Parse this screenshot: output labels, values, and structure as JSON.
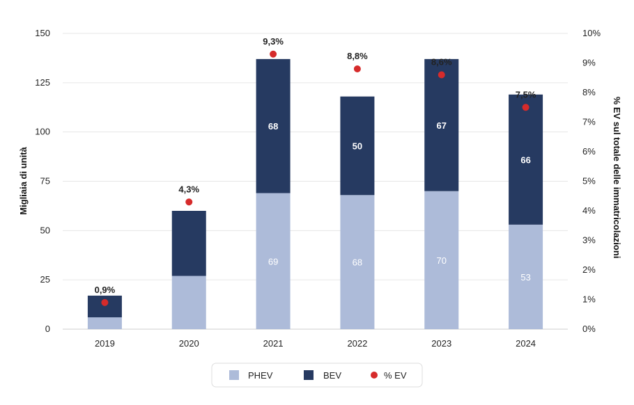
{
  "chart_data": {
    "type": "bar",
    "stacked": true,
    "categories": [
      "2019",
      "2020",
      "2021",
      "2022",
      "2023",
      "2024"
    ],
    "series": [
      {
        "name": "PHEV",
        "color": "#adbbd9",
        "values": [
          6,
          27,
          69,
          68,
          70,
          53
        ],
        "labels": [
          "",
          "",
          "69",
          "68",
          "70",
          "53"
        ]
      },
      {
        "name": "BEV",
        "color": "#263a61",
        "values": [
          11,
          33,
          68,
          50,
          67,
          66
        ],
        "labels": [
          "",
          "",
          "68",
          "50",
          "67",
          "66"
        ]
      }
    ],
    "line_series": {
      "name": "% EV",
      "color": "#d62b2b",
      "axis": "right",
      "values": [
        0.9,
        4.3,
        9.3,
        8.8,
        8.6,
        7.5
      ],
      "labels": [
        "0,9%",
        "4,3%",
        "9,3%",
        "8,8%",
        "8,6%",
        "7,5%"
      ]
    },
    "ylabel": "Migliaia di unità",
    "y2label": "% EV sul totale delle immatricolazioni",
    "ylim": [
      0,
      150
    ],
    "yticks": [
      "0",
      "25",
      "50",
      "75",
      "100",
      "125",
      "150"
    ],
    "y2lim": [
      0,
      10
    ],
    "y2ticks": [
      "0%",
      "1%",
      "2%",
      "3%",
      "4%",
      "5%",
      "6%",
      "7%",
      "8%",
      "9%",
      "10%"
    ],
    "grid": true,
    "legend": {
      "position": "bottom-center",
      "items": [
        "PHEV",
        "BEV",
        "% EV"
      ]
    }
  }
}
